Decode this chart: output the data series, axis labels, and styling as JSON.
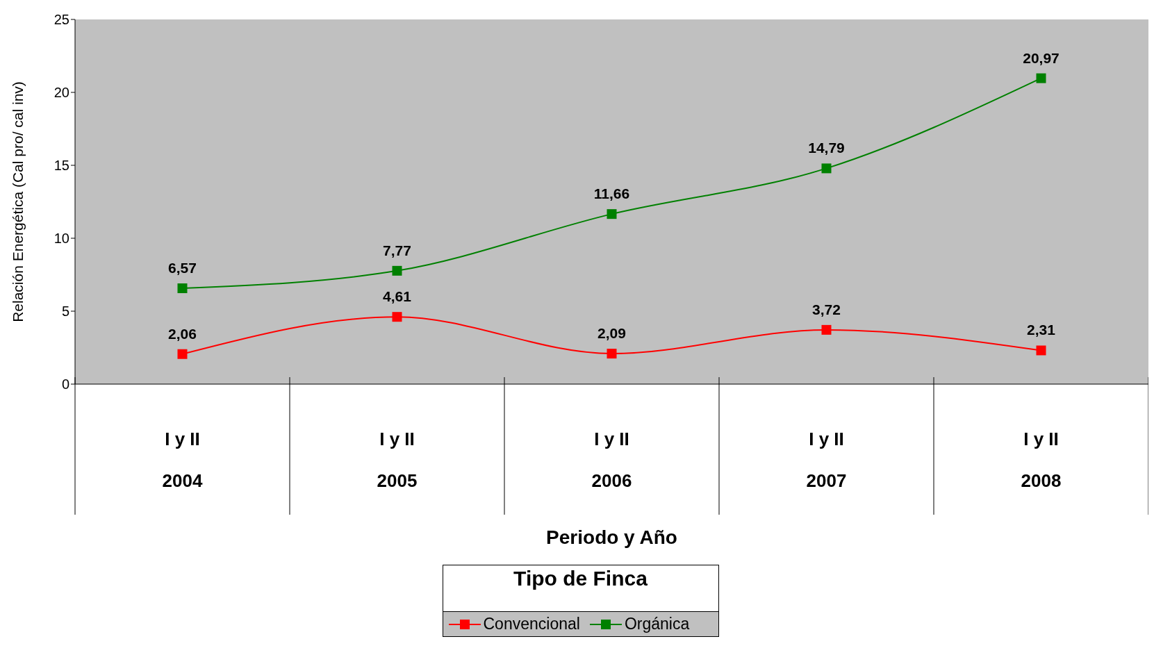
{
  "chart_data": {
    "type": "line",
    "xlabel": "Periodo y Año",
    "ylabel": "Relación Energética (Cal pro/ cal inv)",
    "legend_title": "Tipo de Finca",
    "categories": [
      "I y II\n2004",
      "I y II\n2005",
      "I y II\n2006",
      "I y II\n2007",
      "I y II\n2008"
    ],
    "series": [
      {
        "name": "Convencional",
        "color": "#ff0000",
        "values": [
          2.06,
          4.61,
          2.09,
          3.72,
          2.31
        ],
        "value_labels": [
          "2,06",
          "4,61",
          "2,09",
          "3,72",
          "2,31"
        ]
      },
      {
        "name": "Orgánica",
        "color": "#008000",
        "values": [
          6.57,
          7.77,
          11.66,
          14.79,
          20.97
        ],
        "value_labels": [
          "6,57",
          "7,77",
          "11,66",
          "14,79",
          "20,97"
        ]
      }
    ],
    "ylim": [
      0,
      25
    ],
    "yticks": [
      0,
      5,
      10,
      15,
      20,
      25
    ],
    "grid": false,
    "legend": "bottom",
    "marker": "square",
    "line_style": "solid"
  }
}
